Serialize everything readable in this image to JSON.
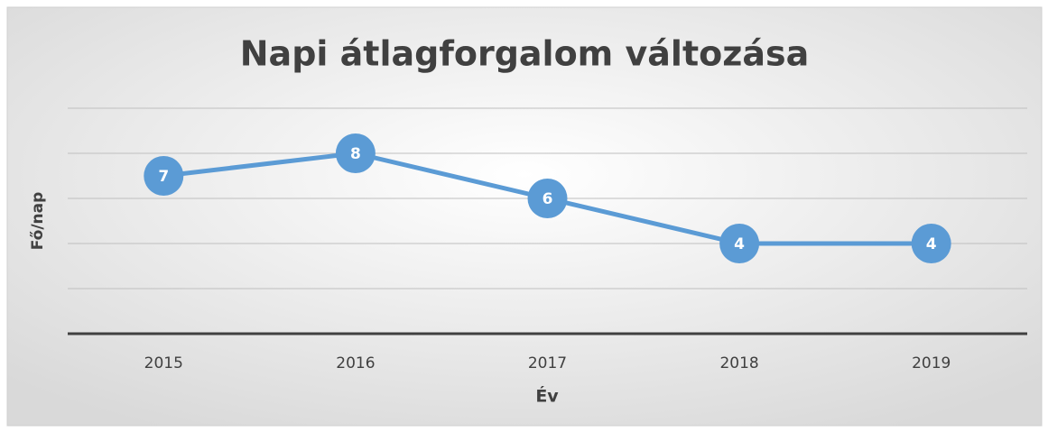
{
  "chart_data": {
    "type": "line",
    "title": "Napi átlagforgalom változása",
    "x_label": "Év",
    "y_label": "Fő/nap",
    "categories": [
      "2015",
      "2016",
      "2017",
      "2018",
      "2019"
    ],
    "series": [
      {
        "name": "Fő/nap",
        "color": "#5b9bd5",
        "values": [
          7,
          8,
          6,
          4,
          4
        ]
      }
    ],
    "ylim": [
      0,
      10
    ],
    "yticks": [
      0,
      2,
      4,
      6,
      8,
      10
    ],
    "grid": true
  }
}
